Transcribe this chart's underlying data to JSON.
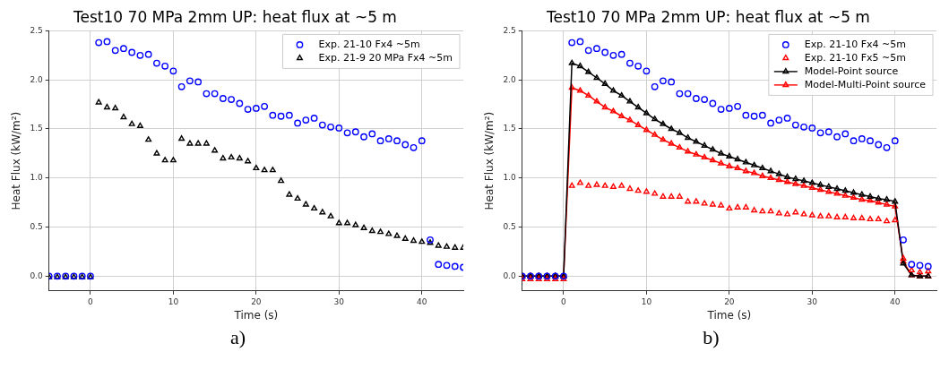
{
  "chart_data": [
    {
      "type": "scatter",
      "title": "Test10 70 MPa 2mm UP: heat flux at ~5 m",
      "xlabel": "Time (s)",
      "ylabel": "Heat Flux (kW/m²)",
      "annotations": [
        "a)"
      ],
      "xlim": [
        -5,
        45
      ],
      "xticks": [
        0,
        10,
        20,
        30,
        40
      ],
      "ylim": [
        -0.15,
        2.5
      ],
      "yticks": [
        {
          "value": 0,
          "label": "0.0"
        },
        0.5,
        {
          "value": 1,
          "label": "1.0"
        },
        1.5,
        {
          "value": 2,
          "label": "2.0"
        },
        2.5
      ],
      "grid": true,
      "legend": "top right",
      "x": [
        -5,
        -4,
        -3,
        -2,
        -1,
        0,
        1,
        2,
        3,
        4,
        5,
        6,
        7,
        8,
        9,
        10,
        11,
        12,
        13,
        14,
        15,
        16,
        17,
        18,
        19,
        20,
        21,
        22,
        23,
        24,
        25,
        26,
        27,
        28,
        29,
        30,
        31,
        32,
        33,
        34,
        35,
        36,
        37,
        38,
        39,
        40,
        41,
        42,
        43,
        44,
        45
      ],
      "series": [
        {
          "name": "Exp. 21-10 Fx4 ~5m",
          "type": "scatter",
          "marker": "circle",
          "color": "#0000ff",
          "values": [
            0,
            0,
            0,
            0,
            0,
            0,
            2.38,
            2.39,
            2.3,
            2.32,
            2.28,
            2.25,
            2.26,
            2.17,
            2.14,
            2.09,
            1.93,
            1.99,
            1.98,
            1.86,
            1.86,
            1.81,
            1.8,
            1.76,
            1.7,
            1.71,
            1.73,
            1.64,
            1.63,
            1.64,
            1.56,
            1.59,
            1.61,
            1.54,
            1.52,
            1.51,
            1.46,
            1.47,
            1.42,
            1.45,
            1.38,
            1.4,
            1.38,
            1.34,
            1.31,
            1.38,
            0.37,
            0.12,
            0.11,
            0.1,
            0.09
          ]
        },
        {
          "name": "Exp. 21-9 20 MPa Fx4 ~5m",
          "type": "scatter",
          "marker": "triangle",
          "color": "#000000",
          "values": [
            -0.01,
            -0.01,
            -0.01,
            -0.01,
            -0.01,
            -0.01,
            1.77,
            1.72,
            1.71,
            1.62,
            1.55,
            1.53,
            1.39,
            1.25,
            1.18,
            1.18,
            1.4,
            1.35,
            1.35,
            1.35,
            1.28,
            1.2,
            1.21,
            1.2,
            1.17,
            1.1,
            1.08,
            1.08,
            0.97,
            0.83,
            0.79,
            0.73,
            0.69,
            0.65,
            0.61,
            0.54,
            0.54,
            0.52,
            0.49,
            0.46,
            0.45,
            0.43,
            0.41,
            0.38,
            0.36,
            0.35,
            0.34,
            0.31,
            0.3,
            0.29,
            0.29
          ]
        }
      ]
    },
    {
      "type": "scatter",
      "title": "Test10 70 MPa 2mm UP: heat flux at ~5 m",
      "xlabel": "Time (s)",
      "ylabel": "Heat Flux (kW/m²)",
      "annotations": [
        "b)"
      ],
      "xlim": [
        -5,
        45
      ],
      "xticks": [
        0,
        10,
        20,
        30,
        40
      ],
      "ylim": [
        -0.15,
        2.5
      ],
      "yticks": [
        {
          "value": 0,
          "label": "0.0"
        },
        0.5,
        {
          "value": 1,
          "label": "1.0"
        },
        1.5,
        {
          "value": 2,
          "label": "2.0"
        },
        2.5
      ],
      "grid": true,
      "legend": "top right",
      "x": [
        -5,
        -4,
        -3,
        -2,
        -1,
        0,
        1,
        2,
        3,
        4,
        5,
        6,
        7,
        8,
        9,
        10,
        11,
        12,
        13,
        14,
        15,
        16,
        17,
        18,
        19,
        20,
        21,
        22,
        23,
        24,
        25,
        26,
        27,
        28,
        29,
        30,
        31,
        32,
        33,
        34,
        35,
        36,
        37,
        38,
        39,
        40,
        41,
        42,
        43,
        44
      ],
      "series": [
        {
          "name": "Exp. 21-10 Fx4 ~5m",
          "type": "scatter",
          "marker": "circle",
          "color": "#0000ff",
          "values": [
            0,
            0,
            0,
            0,
            0,
            0,
            2.38,
            2.39,
            2.3,
            2.32,
            2.28,
            2.25,
            2.26,
            2.17,
            2.14,
            2.09,
            1.93,
            1.99,
            1.98,
            1.86,
            1.86,
            1.81,
            1.8,
            1.76,
            1.7,
            1.71,
            1.73,
            1.64,
            1.63,
            1.64,
            1.56,
            1.59,
            1.61,
            1.54,
            1.52,
            1.51,
            1.46,
            1.47,
            1.42,
            1.45,
            1.38,
            1.4,
            1.38,
            1.34,
            1.31,
            1.38,
            0.37,
            0.12,
            0.11,
            0.1
          ]
        },
        {
          "name": "Exp. 21-10 Fx5 ~5m",
          "type": "scatter",
          "marker": "triangle",
          "color": "#ff0000",
          "values": [
            -0.03,
            -0.03,
            -0.03,
            -0.03,
            -0.03,
            -0.03,
            0.92,
            0.95,
            0.92,
            0.93,
            0.92,
            0.91,
            0.92,
            0.89,
            0.87,
            0.86,
            0.84,
            0.81,
            0.81,
            0.81,
            0.76,
            0.76,
            0.74,
            0.73,
            0.72,
            0.69,
            0.7,
            0.7,
            0.67,
            0.66,
            0.66,
            0.64,
            0.63,
            0.65,
            0.63,
            0.62,
            0.61,
            0.61,
            0.6,
            0.6,
            0.59,
            0.59,
            0.58,
            0.58,
            0.56,
            0.57,
            0.18,
            0.06,
            0.04,
            0.05
          ]
        },
        {
          "name": "Model-Point source",
          "type": "line",
          "marker": "triangle",
          "line_style": "solid",
          "color": "#000000",
          "values": [
            0,
            0,
            0,
            0,
            0,
            0,
            2.17,
            2.14,
            2.08,
            2.02,
            1.96,
            1.89,
            1.84,
            1.78,
            1.72,
            1.66,
            1.6,
            1.55,
            1.5,
            1.46,
            1.41,
            1.37,
            1.33,
            1.29,
            1.25,
            1.22,
            1.19,
            1.16,
            1.13,
            1.1,
            1.07,
            1.04,
            1.01,
            0.99,
            0.97,
            0.95,
            0.93,
            0.91,
            0.89,
            0.87,
            0.85,
            0.83,
            0.81,
            0.79,
            0.78,
            0.76,
            0.13,
            0.01,
            0,
            0
          ]
        },
        {
          "name": "Model-Multi-Point source",
          "type": "line",
          "marker": "triangle",
          "line_style": "solid",
          "color": "#ff0000",
          "values": [
            0,
            0,
            0,
            0,
            0,
            0,
            1.92,
            1.89,
            1.84,
            1.78,
            1.72,
            1.68,
            1.63,
            1.59,
            1.54,
            1.49,
            1.44,
            1.39,
            1.35,
            1.31,
            1.27,
            1.24,
            1.21,
            1.18,
            1.15,
            1.12,
            1.1,
            1.07,
            1.05,
            1.02,
            1,
            0.98,
            0.96,
            0.94,
            0.92,
            0.9,
            0.88,
            0.86,
            0.84,
            0.82,
            0.8,
            0.78,
            0.77,
            0.75,
            0.73,
            0.71,
            0.15,
            0.01,
            0,
            0
          ]
        }
      ]
    }
  ]
}
